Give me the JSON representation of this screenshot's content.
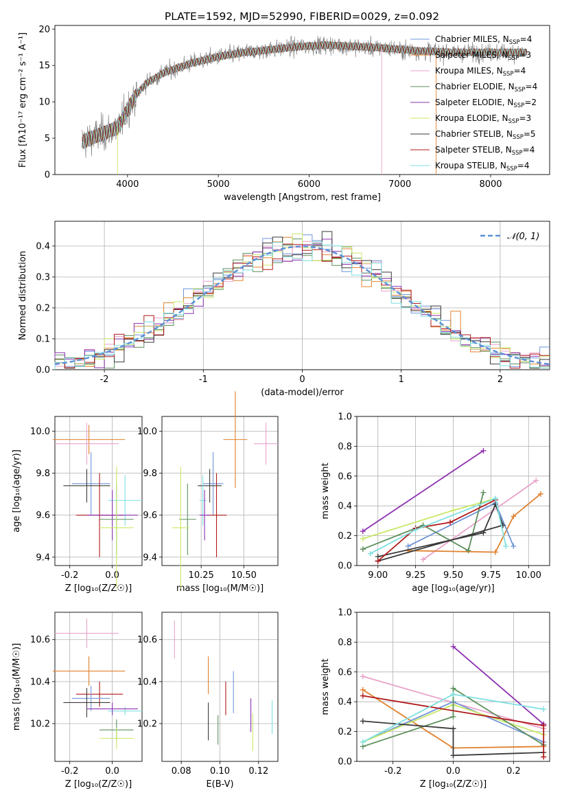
{
  "figure": {
    "title": "PLATE=1592, MJD=52990, FIBERID=0029, z=0.092"
  },
  "colors": {
    "Chabrier MILES": "#6f94d8",
    "Salpeter MILES": "#e0812e",
    "Kroupa MILES": "#e9a2c9",
    "Chabrier ELODIE": "#5c8f5c",
    "Salpeter ELODIE": "#8c2fb0",
    "Kroupa ELODIE": "#c8e866",
    "Chabrier STELIB": "#3a3a3a",
    "Salpeter STELIB": "#b01818",
    "Kroupa STELIB": "#7fe0e0",
    "gaussian": "#5b8fd6"
  },
  "chart_data": [
    {
      "id": "spectrum",
      "type": "line",
      "title": "PLATE=1592, MJD=52990, FIBERID=0029, z=0.092",
      "xlabel": "wavelength [Angstrom, rest frame]",
      "ylabel": "Flux [fλ10⁻¹⁷ erg cm⁻² s⁻¹ A⁻¹]",
      "xlim": [
        3200,
        8650
      ],
      "ylim": [
        0,
        20.5
      ],
      "xticks": [
        4000,
        5000,
        6000,
        7000,
        8000
      ],
      "yticks": [
        0,
        5,
        10,
        15,
        20
      ],
      "legend_position": "right",
      "legend": [
        {
          "label": "Chabrier MILES, N",
          "sub": "SSP",
          "suffix": "=4",
          "model": "Chabrier MILES"
        },
        {
          "label": "Salpeter MILES, N",
          "sub": "SSP",
          "suffix": "=3",
          "model": "Salpeter MILES"
        },
        {
          "label": "Kroupa MILES, N",
          "sub": "SSP",
          "suffix": "=4",
          "model": "Kroupa MILES"
        },
        {
          "label": "Chabrier ELODIE, N",
          "sub": "SSP",
          "suffix": "=4",
          "model": "Chabrier ELODIE"
        },
        {
          "label": "Salpeter ELODIE, N",
          "sub": "SSP",
          "suffix": "=2",
          "model": "Salpeter ELODIE"
        },
        {
          "label": "Kroupa ELODIE, N",
          "sub": "SSP",
          "suffix": "=3",
          "model": "Kroupa ELODIE"
        },
        {
          "label": "Chabrier STELIB, N",
          "sub": "SSP",
          "suffix": "=5",
          "model": "Chabrier STELIB"
        },
        {
          "label": "Salpeter STELIB, N",
          "sub": "SSP",
          "suffix": "=4",
          "model": "Salpeter STELIB"
        },
        {
          "label": "Kroupa STELIB, N",
          "sub": "SSP",
          "suffix": "=4",
          "model": "Kroupa STELIB"
        }
      ],
      "continuum": {
        "x": [
          3500,
          3700,
          3900,
          4000,
          4100,
          4200,
          4400,
          4700,
          5000,
          5300,
          5600,
          5900,
          6200,
          6500,
          6800,
          7000,
          7200,
          7400,
          7600,
          7800,
          8100,
          8400
        ],
        "y": [
          4.5,
          5.5,
          6.5,
          9.0,
          11.0,
          12.5,
          14.0,
          15.3,
          16.2,
          16.8,
          17.2,
          17.6,
          17.8,
          17.6,
          17.4,
          17.2,
          17.0,
          16.9,
          16.8,
          16.8,
          16.8,
          16.8
        ]
      }
    },
    {
      "id": "residuals",
      "type": "histogram",
      "xlabel": "(data-model)/error",
      "ylabel": "Normed distribution",
      "xlim": [
        -2.5,
        2.5
      ],
      "ylim": [
        0,
        0.48
      ],
      "xticks": [
        -2,
        -1,
        0,
        1,
        2
      ],
      "yticks": [
        0.0,
        0.1,
        0.2,
        0.3,
        0.4
      ],
      "grid": true,
      "legend_label": "𝒩(0, 1)",
      "legend_position": "top-right"
    },
    {
      "id": "age_vs_Z",
      "type": "errorbar",
      "xlabel": "Z [log₁₀(Z/Z☉)]",
      "ylabel": "age  [log₁₀(age/yr)]",
      "xlim": [
        -0.27,
        0.14
      ],
      "ylim": [
        9.36,
        10.07
      ],
      "xticks": [
        -0.2,
        0.0
      ],
      "yticks": [
        9.4,
        9.6,
        9.8,
        10.0
      ],
      "points": [
        {
          "model": "Salpeter MILES",
          "x": -0.11,
          "xerr": 0.17,
          "y": 9.96,
          "yerr": 0.07
        },
        {
          "model": "Kroupa MILES",
          "x": -0.12,
          "xerr": 0.15,
          "y": 9.94,
          "yerr": 0.1
        },
        {
          "model": "Chabrier MILES",
          "x": -0.1,
          "xerr": 0.09,
          "y": 9.75,
          "yerr": 0.15
        },
        {
          "model": "Chabrier STELIB",
          "x": -0.12,
          "xerr": 0.11,
          "y": 9.74,
          "yerr": 0.08
        },
        {
          "model": "Kroupa STELIB",
          "x": 0.06,
          "xerr": 0.08,
          "y": 9.67,
          "yerr": 0.12
        },
        {
          "model": "Salpeter STELIB",
          "x": -0.06,
          "xerr": 0.11,
          "y": 9.6,
          "yerr": 0.2
        },
        {
          "model": "Salpeter ELODIE",
          "x": 0.0,
          "xerr": 0.12,
          "y": 9.6,
          "yerr": 0.12
        },
        {
          "model": "Chabrier ELODIE",
          "x": 0.02,
          "xerr": 0.08,
          "y": 9.58,
          "yerr": 0.17
        },
        {
          "model": "Kroupa ELODIE",
          "x": 0.02,
          "xerr": 0.08,
          "y": 9.54,
          "yerr": 0.29
        }
      ]
    },
    {
      "id": "age_vs_mass",
      "type": "errorbar",
      "xlabel": "mass [log₁₀(M/M☉)]",
      "xlim": [
        10.02,
        10.7
      ],
      "ylim": [
        9.36,
        10.07
      ],
      "xticks": [
        10.25,
        10.5
      ],
      "yticks": [
        9.4,
        9.6,
        9.8,
        10.0
      ],
      "points": [
        {
          "model": "Kroupa MILES",
          "x": 10.63,
          "xerr": 0.07,
          "y": 9.94,
          "yerr": 0.1
        },
        {
          "model": "Salpeter MILES",
          "x": 10.45,
          "xerr": 0.07,
          "y": 9.96,
          "yerr": 0.23
        },
        {
          "model": "Chabrier MILES",
          "x": 10.32,
          "xerr": 0.06,
          "y": 9.75,
          "yerr": 0.15
        },
        {
          "model": "Chabrier STELIB",
          "x": 10.3,
          "xerr": 0.07,
          "y": 9.74,
          "yerr": 0.08
        },
        {
          "model": "Kroupa STELIB",
          "x": 10.26,
          "xerr": 0.02,
          "y": 9.67,
          "yerr": 0.12
        },
        {
          "model": "Salpeter STELIB",
          "x": 10.34,
          "xerr": 0.06,
          "y": 9.6,
          "yerr": 0.2
        },
        {
          "model": "Salpeter ELODIE",
          "x": 10.27,
          "xerr": 0.03,
          "y": 9.6,
          "yerr": 0.12
        },
        {
          "model": "Chabrier ELODIE",
          "x": 10.17,
          "xerr": 0.05,
          "y": 9.58,
          "yerr": 0.17
        },
        {
          "model": "Kroupa ELODIE",
          "x": 10.13,
          "xerr": 0.05,
          "y": 9.54,
          "yerr": 0.29
        }
      ]
    },
    {
      "id": "massweight_vs_age",
      "type": "line",
      "xlabel": "age  [log₁₀(age/yr)]",
      "ylabel": "mass weight",
      "xlim": [
        8.86,
        10.14
      ],
      "ylim": [
        0,
        1.0
      ],
      "xticks": [
        9.0,
        9.25,
        9.5,
        9.75,
        10.0
      ],
      "yticks": [
        0.0,
        0.2,
        0.4,
        0.6,
        0.8,
        1.0
      ],
      "grid": true,
      "series": [
        {
          "model": "Salpeter ELODIE",
          "x": [
            8.9,
            9.7
          ],
          "y": [
            0.23,
            0.77
          ]
        },
        {
          "model": "Kroupa MILES",
          "x": [
            9.3,
            10.05
          ],
          "y": [
            0.04,
            0.57
          ]
        },
        {
          "model": "Salpeter MILES",
          "x": [
            9.2,
            9.78,
            9.9,
            10.08
          ],
          "y": [
            0.1,
            0.09,
            0.33,
            0.48
          ]
        },
        {
          "model": "Chabrier MILES",
          "x": [
            9.2,
            9.78,
            9.9
          ],
          "y": [
            0.13,
            0.42,
            0.13
          ]
        },
        {
          "model": "Kroupa ELODIE",
          "x": [
            8.9,
            9.5,
            9.75
          ],
          "y": [
            0.18,
            0.37,
            0.44
          ]
        },
        {
          "model": "Chabrier ELODIE",
          "x": [
            8.9,
            9.3,
            9.6,
            9.7
          ],
          "y": [
            0.11,
            0.27,
            0.1,
            0.49
          ]
        },
        {
          "model": "Chabrier STELIB",
          "x": [
            9.0,
            9.7,
            9.78,
            9.83,
            9.0
          ],
          "y": [
            0.06,
            0.22,
            0.41,
            0.27,
            0.03
          ]
        },
        {
          "model": "Salpeter STELIB",
          "x": [
            9.0,
            9.25,
            9.48,
            9.78
          ],
          "y": [
            0.03,
            0.25,
            0.29,
            0.44
          ]
        },
        {
          "model": "Kroupa STELIB",
          "x": [
            8.95,
            9.25,
            9.78,
            9.85
          ],
          "y": [
            0.08,
            0.24,
            0.45,
            0.13
          ]
        }
      ]
    },
    {
      "id": "mass_vs_Z",
      "type": "errorbar",
      "xlabel": "Z [log₁₀(Z/Z☉)]",
      "ylabel": "mass [log₁₀(M/M☉)]",
      "xlim": [
        -0.27,
        0.14
      ],
      "ylim": [
        10.02,
        10.73
      ],
      "xticks": [
        -0.2,
        0.0
      ],
      "yticks": [
        10.2,
        10.4,
        10.6
      ],
      "points": [
        {
          "model": "Kroupa MILES",
          "x": -0.12,
          "xerr": 0.15,
          "y": 10.63,
          "yerr": 0.07
        },
        {
          "model": "Salpeter MILES",
          "x": -0.11,
          "xerr": 0.17,
          "y": 10.45,
          "yerr": 0.07
        },
        {
          "model": "Salpeter STELIB",
          "x": -0.06,
          "xerr": 0.11,
          "y": 10.34,
          "yerr": 0.06
        },
        {
          "model": "Chabrier MILES",
          "x": -0.1,
          "xerr": 0.09,
          "y": 10.32,
          "yerr": 0.06
        },
        {
          "model": "Chabrier STELIB",
          "x": -0.12,
          "xerr": 0.11,
          "y": 10.3,
          "yerr": 0.07
        },
        {
          "model": "Kroupa STELIB",
          "x": 0.06,
          "xerr": 0.08,
          "y": 10.26,
          "yerr": 0.02
        },
        {
          "model": "Salpeter ELODIE",
          "x": 0.0,
          "xerr": 0.12,
          "y": 10.27,
          "yerr": 0.03
        },
        {
          "model": "Chabrier ELODIE",
          "x": 0.02,
          "xerr": 0.08,
          "y": 10.17,
          "yerr": 0.05
        },
        {
          "model": "Kroupa ELODIE",
          "x": 0.02,
          "xerr": 0.08,
          "y": 10.13,
          "yerr": 0.05
        }
      ]
    },
    {
      "id": "mass_vs_ebv",
      "type": "errorbar",
      "xlabel": "E(B-V)",
      "xlim": [
        0.07,
        0.13
      ],
      "ylim": [
        10.02,
        10.73
      ],
      "xticks": [
        0.08,
        0.1,
        0.12
      ],
      "yticks": [
        10.2,
        10.4,
        10.6
      ],
      "points": [
        {
          "model": "Kroupa MILES",
          "x": 0.0765,
          "y": 10.6,
          "yerr": 0.09
        },
        {
          "model": "Salpeter MILES",
          "x": 0.094,
          "y": 10.43,
          "yerr": 0.09
        },
        {
          "model": "Chabrier STELIB",
          "x": 0.094,
          "y": 10.21,
          "yerr": 0.09
        },
        {
          "model": "Chabrier ELODIE",
          "x": 0.099,
          "y": 10.17,
          "yerr": 0.07
        },
        {
          "model": "Salpeter STELIB",
          "x": 0.103,
          "y": 10.32,
          "yerr": 0.08
        },
        {
          "model": "Chabrier MILES",
          "x": 0.107,
          "y": 10.35,
          "yerr": 0.1
        },
        {
          "model": "Salpeter ELODIE",
          "x": 0.116,
          "y": 10.24,
          "yerr": 0.08
        },
        {
          "model": "Kroupa ELODIE",
          "x": 0.117,
          "y": 10.16,
          "yerr": 0.09
        },
        {
          "model": "Kroupa STELIB",
          "x": 0.127,
          "y": 10.23,
          "yerr": 0.08
        }
      ]
    },
    {
      "id": "massweight_vs_Z",
      "type": "line",
      "xlabel": "Z [log₁₀(Z/Z☉)]",
      "ylabel": "mass weight",
      "xlim": [
        -0.32,
        0.32
      ],
      "ylim": [
        0,
        1.0
      ],
      "xticks": [
        -0.2,
        0.0,
        0.2
      ],
      "yticks": [
        0.0,
        0.2,
        0.4,
        0.6,
        0.8,
        1.0
      ],
      "grid": true,
      "series": [
        {
          "model": "Salpeter ELODIE",
          "x": [
            0.0,
            0.3
          ],
          "y": [
            0.77,
            0.25
          ]
        },
        {
          "model": "Kroupa MILES",
          "x": [
            -0.3,
            0.3
          ],
          "y": [
            0.57,
            0.22
          ]
        },
        {
          "model": "Salpeter MILES",
          "x": [
            -0.3,
            0.0,
            0.3
          ],
          "y": [
            0.48,
            0.09,
            0.1
          ]
        },
        {
          "model": "Chabrier MILES",
          "x": [
            -0.3,
            0.0,
            0.3
          ],
          "y": [
            0.13,
            0.4,
            0.13
          ]
        },
        {
          "model": "Kroupa ELODIE",
          "x": [
            -0.3,
            0.0,
            0.3
          ],
          "y": [
            0.13,
            0.38,
            0.18
          ]
        },
        {
          "model": "Chabrier ELODIE",
          "x": [
            -0.3,
            0.0,
            0.0,
            0.3
          ],
          "y": [
            0.1,
            0.3,
            0.49,
            0.11
          ]
        },
        {
          "model": "Chabrier STELIB",
          "x": [
            -0.3,
            0.0,
            0.0,
            0.3
          ],
          "y": [
            0.27,
            0.22,
            0.04,
            0.06
          ]
        },
        {
          "model": "Salpeter STELIB",
          "x": [
            -0.3,
            0.3,
            0.3
          ],
          "y": [
            0.44,
            0.24,
            0.03
          ]
        },
        {
          "model": "Kroupa STELIB",
          "x": [
            -0.3,
            0.0,
            0.3
          ],
          "y": [
            0.13,
            0.45,
            0.35
          ]
        }
      ]
    }
  ]
}
